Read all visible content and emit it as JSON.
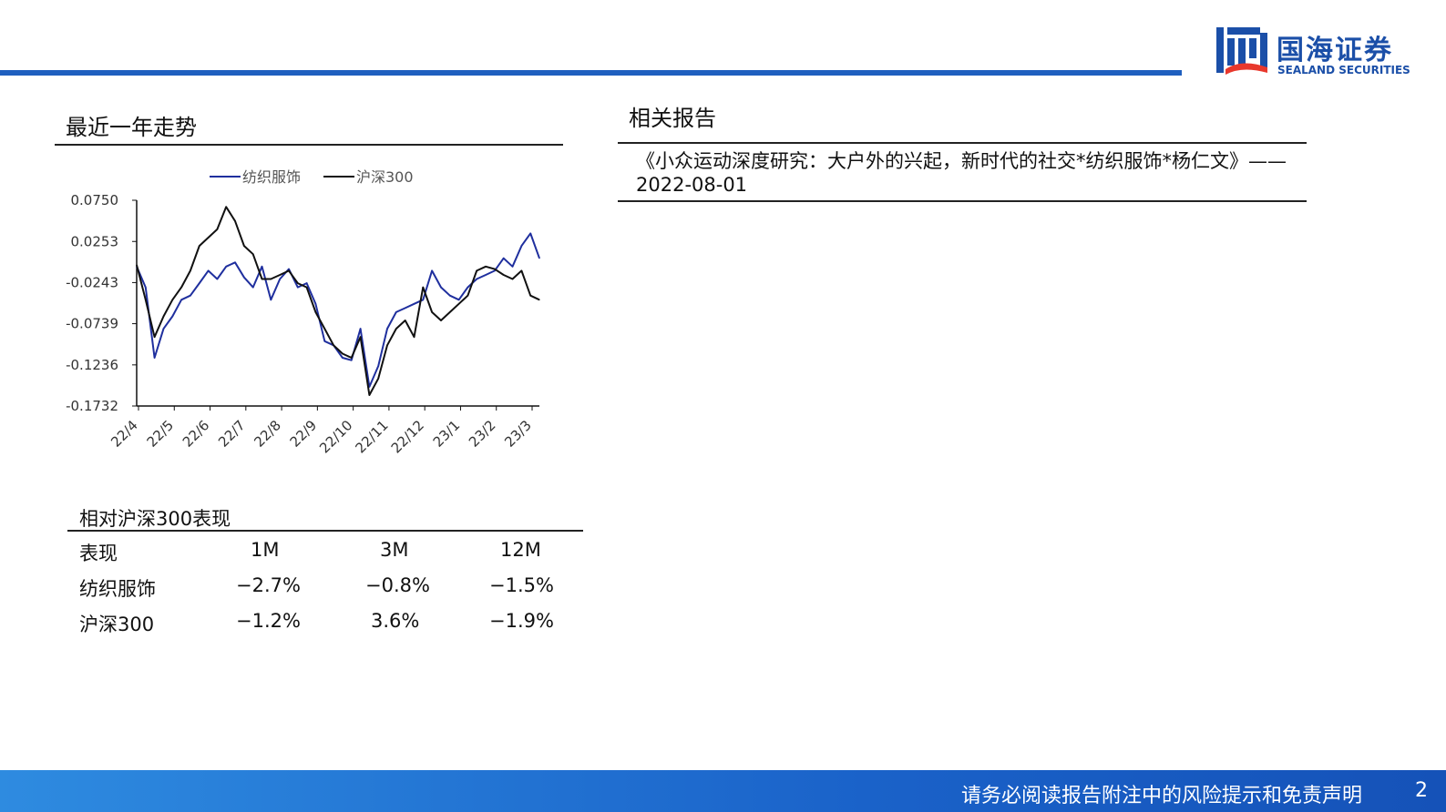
{
  "brand": {
    "name_cn": "国海证券",
    "name_en": "SEALAND SECURITIES",
    "color": "#1b4fa8",
    "mark_red": "#e8382c"
  },
  "trend_section": {
    "title": "最近一年走势"
  },
  "related_section": {
    "title": "相关报告",
    "reports": [
      {
        "text": "《小众运动深度研究：大户外的兴起，新时代的社交*纺织服饰*杨仁文》——2022-08-01"
      }
    ]
  },
  "chart_data": {
    "type": "line",
    "legend_position": "top-center",
    "grid": false,
    "x_tick_labels": [
      "22/4",
      "22/5",
      "22/6",
      "22/7",
      "22/8",
      "22/9",
      "22/10",
      "22/11",
      "22/12",
      "23/1",
      "23/2",
      "23/3"
    ],
    "y_tick_labels": [
      "0.0750",
      "0.0253",
      "-0.0243",
      "-0.0739",
      "-0.1236",
      "-0.1732"
    ],
    "ylim": [
      -0.1732,
      0.075
    ],
    "x": [
      "22/4",
      "22/4.25",
      "22/4.5",
      "22/4.75",
      "22/5",
      "22/5.25",
      "22/5.5",
      "22/5.75",
      "22/6",
      "22/6.25",
      "22/6.5",
      "22/6.75",
      "22/7",
      "22/7.25",
      "22/7.5",
      "22/7.75",
      "22/8",
      "22/8.25",
      "22/8.5",
      "22/8.75",
      "22/9",
      "22/9.25",
      "22/9.5",
      "22/9.75",
      "22/10",
      "22/10.25",
      "22/10.5",
      "22/10.75",
      "22/11",
      "22/11.25",
      "22/11.5",
      "22/11.75",
      "22/12",
      "22/12.25",
      "22/12.5",
      "22/12.75",
      "23/1",
      "23/1.25",
      "23/1.5",
      "23/1.75",
      "23/2",
      "23/2.25",
      "23/2.5",
      "23/2.75",
      "23/3",
      "23/3.25"
    ],
    "series": [
      {
        "name": "纺织服饰",
        "color": "#1f2f9e",
        "values": [
          -0.005,
          -0.03,
          -0.115,
          -0.08,
          -0.065,
          -0.045,
          -0.04,
          -0.025,
          -0.01,
          -0.02,
          -0.005,
          0.0,
          -0.018,
          -0.03,
          -0.005,
          -0.045,
          -0.02,
          -0.008,
          -0.03,
          -0.025,
          -0.05,
          -0.095,
          -0.1,
          -0.115,
          -0.118,
          -0.08,
          -0.15,
          -0.125,
          -0.08,
          -0.06,
          -0.055,
          -0.05,
          -0.045,
          -0.01,
          -0.03,
          -0.04,
          -0.045,
          -0.03,
          -0.02,
          -0.015,
          -0.01,
          0.005,
          -0.005,
          0.02,
          0.035,
          0.005
        ]
      },
      {
        "name": "沪深300",
        "color": "#111111",
        "values": [
          -0.003,
          -0.045,
          -0.09,
          -0.065,
          -0.045,
          -0.03,
          -0.01,
          0.02,
          0.03,
          0.04,
          0.067,
          0.05,
          0.02,
          0.01,
          -0.02,
          -0.02,
          -0.015,
          -0.01,
          -0.025,
          -0.03,
          -0.06,
          -0.08,
          -0.1,
          -0.11,
          -0.115,
          -0.09,
          -0.16,
          -0.14,
          -0.1,
          -0.08,
          -0.07,
          -0.09,
          -0.03,
          -0.06,
          -0.07,
          -0.06,
          -0.05,
          -0.04,
          -0.01,
          -0.005,
          -0.008,
          -0.015,
          -0.02,
          -0.01,
          -0.04,
          -0.045
        ]
      }
    ]
  },
  "performance": {
    "title": "相对沪深300表现",
    "columns": [
      "表现",
      "1M",
      "3M",
      "12M"
    ],
    "rows": [
      [
        "纺织服饰",
        "−2.7%",
        "−0.8%",
        "−1.5%"
      ],
      [
        "沪深300",
        "−1.2%",
        "3.6%",
        "−1.9%"
      ]
    ]
  },
  "footer": {
    "disclaimer": "请务必阅读报告附注中的风险提示和免责声明",
    "page": "2",
    "color": "#1a62c9"
  }
}
